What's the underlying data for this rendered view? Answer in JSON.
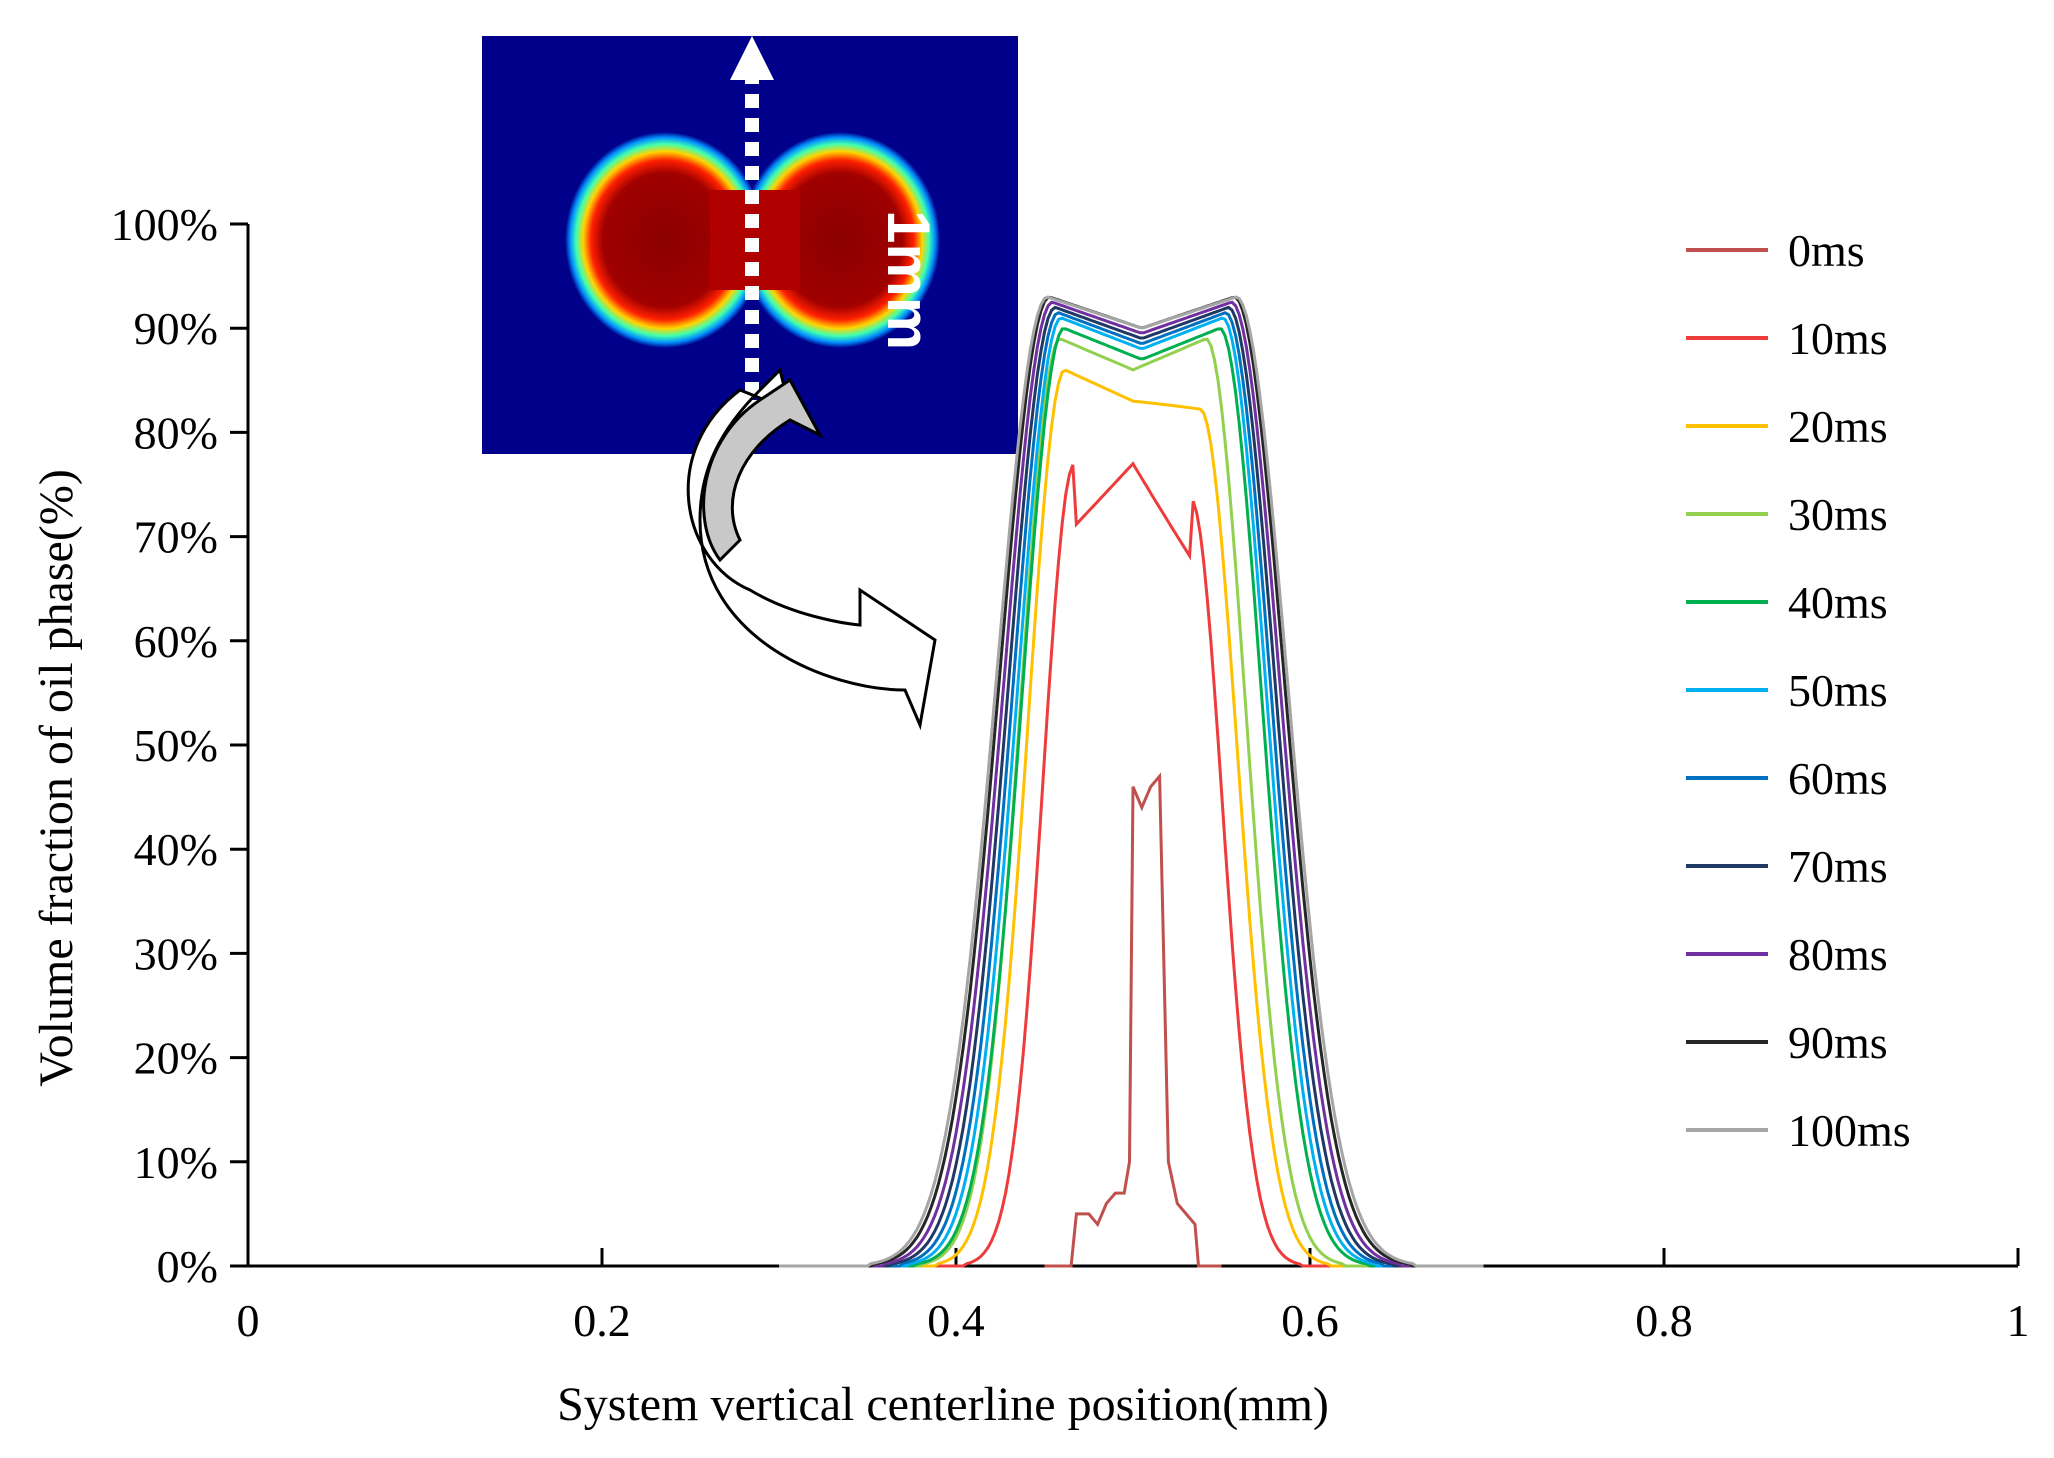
{
  "chart_data": {
    "type": "line",
    "title": "",
    "xlabel": "System vertical centerline position(mm)",
    "ylabel": "Volume fraction of oil phase(%)",
    "xlim": [
      0,
      1
    ],
    "ylim": [
      0,
      100
    ],
    "x_ticks": [
      0,
      0.2,
      0.4,
      0.6,
      0.8,
      1
    ],
    "x_tick_labels": [
      "0",
      "0.2",
      "0.4",
      "0.6",
      "0.8",
      "1"
    ],
    "y_ticks": [
      0,
      10,
      20,
      30,
      40,
      50,
      60,
      70,
      80,
      90,
      100
    ],
    "y_tick_labels": [
      "0%",
      "10%",
      "20%",
      "30%",
      "40%",
      "50%",
      "60%",
      "70%",
      "80%",
      "90%",
      "100%"
    ],
    "legend_position": "right",
    "inset": {
      "label": "1mm",
      "description_colors": {
        "background": "#00008b",
        "droplet": "#8b0000"
      }
    },
    "series": [
      {
        "name": "0ms",
        "color": "#c0504d",
        "points": [
          [
            0.45,
            0
          ],
          [
            0.465,
            0
          ],
          [
            0.468,
            5
          ],
          [
            0.475,
            5
          ],
          [
            0.48,
            4
          ],
          [
            0.485,
            6
          ],
          [
            0.49,
            7
          ],
          [
            0.495,
            7
          ],
          [
            0.498,
            10
          ],
          [
            0.5,
            46
          ],
          [
            0.505,
            44
          ],
          [
            0.51,
            46
          ],
          [
            0.515,
            47
          ],
          [
            0.52,
            10
          ],
          [
            0.525,
            6
          ],
          [
            0.53,
            5
          ],
          [
            0.535,
            4
          ],
          [
            0.537,
            0
          ],
          [
            0.55,
            0
          ]
        ]
      },
      {
        "name": "10ms",
        "color": "#ee3b3b",
        "peak": 77,
        "center": 0.5,
        "width": 0.06
      },
      {
        "name": "20ms",
        "color": "#ffc000",
        "peak": 86,
        "center": 0.5,
        "width": 0.07
      },
      {
        "name": "30ms",
        "color": "#92d050",
        "peak": 89,
        "center": 0.5,
        "width": 0.075
      },
      {
        "name": "40ms",
        "color": "#00b050",
        "peak": 90,
        "center": 0.505,
        "width": 0.08
      },
      {
        "name": "50ms",
        "color": "#00b0f0",
        "peak": 91,
        "center": 0.505,
        "width": 0.083
      },
      {
        "name": "60ms",
        "color": "#0070c0",
        "peak": 91.5,
        "center": 0.505,
        "width": 0.086
      },
      {
        "name": "70ms",
        "color": "#203864",
        "peak": 92,
        "center": 0.505,
        "width": 0.089
      },
      {
        "name": "80ms",
        "color": "#7030a0",
        "peak": 92.5,
        "center": 0.505,
        "width": 0.092
      },
      {
        "name": "90ms",
        "color": "#262626",
        "peak": 93,
        "center": 0.505,
        "width": 0.095
      },
      {
        "name": "100ms",
        "color": "#a6a6a6",
        "peak": 93,
        "center": 0.505,
        "width": 0.097
      }
    ]
  }
}
